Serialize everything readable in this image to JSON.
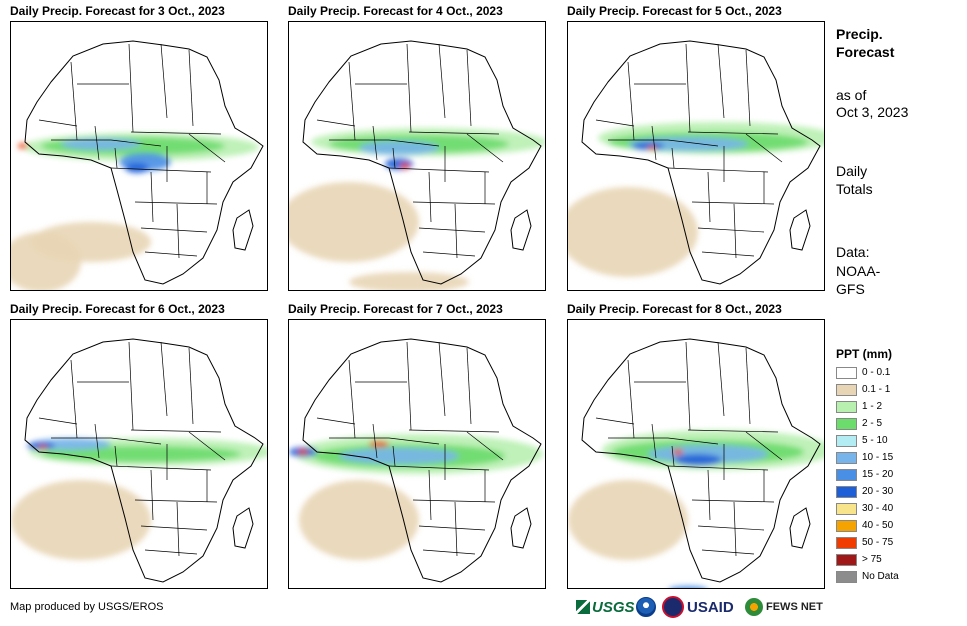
{
  "panels": [
    {
      "title": "Daily Precip. Forecast for 3 Oct., 2023"
    },
    {
      "title": "Daily Precip. Forecast for 4 Oct., 2023"
    },
    {
      "title": "Daily Precip. Forecast for 5 Oct., 2023"
    },
    {
      "title": "Daily Precip. Forecast for 6 Oct., 2023"
    },
    {
      "title": "Daily Precip. Forecast for 7 Oct., 2023"
    },
    {
      "title": "Daily Precip. Forecast for 8 Oct., 2023"
    }
  ],
  "side": {
    "title_line1": "Precip.",
    "title_line2": "Forecast",
    "asof_line1": "as of",
    "asof_line2": "Oct 3, 2023",
    "daily_line1": "Daily",
    "daily_line2": "Totals",
    "data_line1": "Data:",
    "data_line2": "NOAA-",
    "data_line3": "GFS"
  },
  "legend": {
    "title": "PPT (mm)",
    "items": [
      {
        "label": "0 - 0.1",
        "color": "#ffffff"
      },
      {
        "label": "0.1 - 1",
        "color": "#e8d5b5"
      },
      {
        "label": "1 - 2",
        "color": "#b8f0b0"
      },
      {
        "label": "2 - 5",
        "color": "#6cdc6c"
      },
      {
        "label": "5 - 10",
        "color": "#b4ecf4"
      },
      {
        "label": "10 - 15",
        "color": "#78b4ec"
      },
      {
        "label": "15 - 20",
        "color": "#4a8fe6"
      },
      {
        "label": "20 - 30",
        "color": "#1e5fd8"
      },
      {
        "label": "30 - 40",
        "color": "#f8e48a"
      },
      {
        "label": "40 - 50",
        "color": "#f5a300"
      },
      {
        "label": "50 - 75",
        "color": "#f03c00"
      },
      {
        "label": "> 75",
        "color": "#a01818"
      },
      {
        "label": "No Data",
        "color": "#8c8c8c"
      }
    ]
  },
  "credit": "Map produced by USGS/EROS",
  "logos": {
    "usgs": "USGS",
    "usaid": "USAID",
    "fews": "FEWS NET"
  }
}
